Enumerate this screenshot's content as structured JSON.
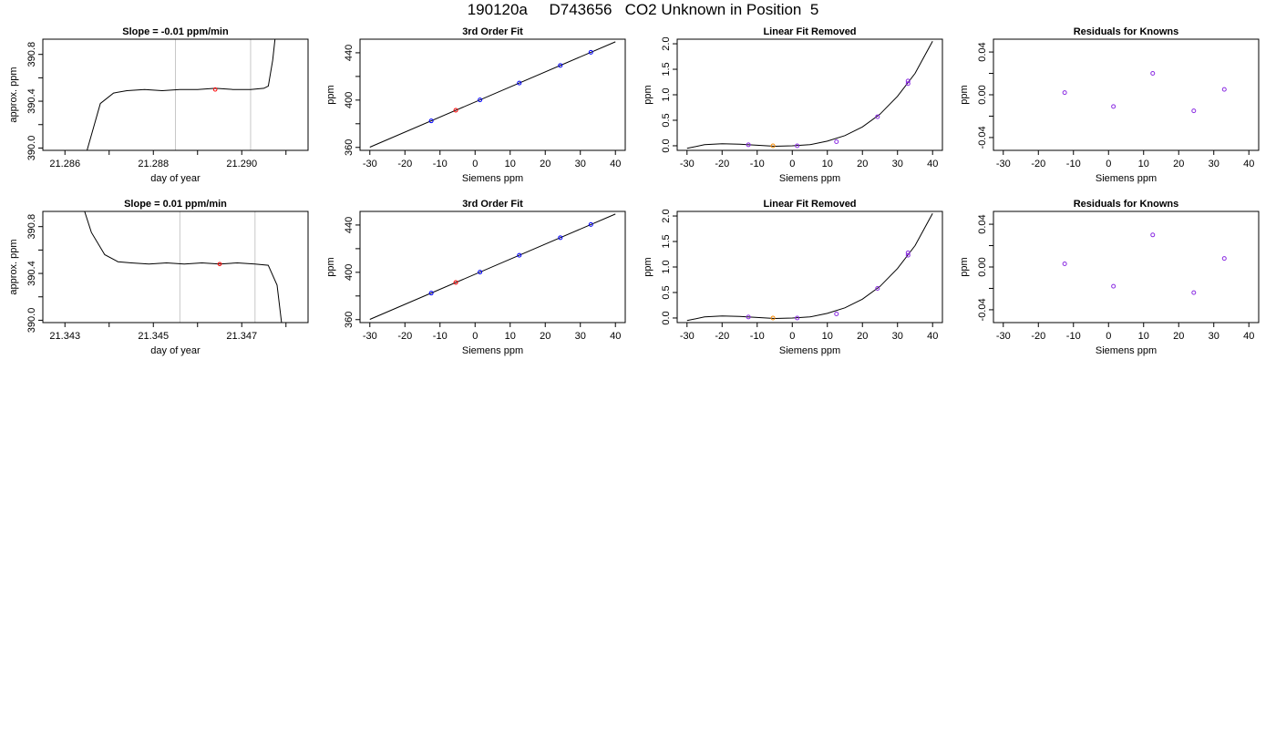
{
  "page_title": "190120a     D743656   CO2 Unknown in Position  5",
  "colors": {
    "curve": "#000000",
    "frame": "#000000",
    "marker_lines": "#c8c8c8",
    "red": "#ff0000",
    "blue": "#0000ff",
    "orange": "#ff8c00",
    "purple": "#8a2be2"
  },
  "chart_data": [
    {
      "type": "line",
      "title": "Slope =  -0.01  ppm/min",
      "xlabel": "day of year",
      "ylabel": "approx. ppm",
      "xlim": [
        21.2855,
        21.2915
      ],
      "ylim": [
        389.98,
        390.93
      ],
      "xticks": [
        21.286,
        21.287,
        21.288,
        21.289,
        21.29,
        21.291
      ],
      "xtick_labels": [
        "21.286",
        "",
        "21.288",
        "",
        "21.290",
        ""
      ],
      "yticks": [
        390.0,
        390.2,
        390.4,
        390.6,
        390.8
      ],
      "ytick_labels": [
        "390.0",
        "",
        "390.4",
        "",
        "390.8"
      ],
      "vlines": [
        21.2885,
        21.2902
      ],
      "x": [
        21.2865,
        21.2868,
        21.2871,
        21.2874,
        21.2878,
        21.2882,
        21.2886,
        21.289,
        21.2894,
        21.2898,
        21.2902,
        21.2905,
        21.2906,
        21.2907,
        21.2908
      ],
      "y": [
        389.98,
        390.38,
        390.47,
        390.49,
        390.5,
        390.49,
        390.5,
        390.5,
        390.51,
        390.5,
        390.5,
        390.51,
        390.53,
        390.75,
        391.1
      ],
      "highlight": {
        "x": 21.2894,
        "y": 390.5,
        "color": "red"
      }
    },
    {
      "type": "scatter",
      "title": "3rd Order Fit",
      "xlabel": "Siemens ppm",
      "ylabel": "ppm",
      "xlim": [
        -32.8,
        42.8
      ],
      "ylim": [
        357.5,
        451.5
      ],
      "xticks": [
        -30,
        -20,
        -10,
        0,
        10,
        20,
        30,
        40
      ],
      "xtick_labels": [
        "-30",
        "-20",
        "-10",
        "0",
        "10",
        "20",
        "30",
        "40"
      ],
      "yticks": [
        360,
        380,
        400,
        420,
        440
      ],
      "ytick_labels": [
        "360",
        "",
        "400",
        "",
        "440"
      ],
      "fit_line": {
        "x": [
          -30,
          40
        ],
        "y": [
          360.2,
          449.3
        ]
      },
      "points": [
        {
          "x": -12.5,
          "y": 382.4,
          "color": "blue"
        },
        {
          "x": -5.5,
          "y": 391.4,
          "color": "red"
        },
        {
          "x": 1.4,
          "y": 400.2,
          "color": "blue"
        },
        {
          "x": 12.6,
          "y": 414.4,
          "color": "blue"
        },
        {
          "x": 24.3,
          "y": 429.3,
          "color": "blue"
        },
        {
          "x": 33.0,
          "y": 440.4,
          "color": "blue"
        }
      ]
    },
    {
      "type": "scatter",
      "title": "Linear Fit Removed",
      "xlabel": "Siemens ppm",
      "ylabel": "ppm",
      "xlim": [
        -32.8,
        42.8
      ],
      "ylim": [
        -0.09,
        2.09
      ],
      "xticks": [
        -30,
        -20,
        -10,
        0,
        10,
        20,
        30,
        40
      ],
      "xtick_labels": [
        "-30",
        "-20",
        "-10",
        "0",
        "10",
        "20",
        "30",
        "40"
      ],
      "yticks": [
        0.0,
        0.5,
        1.0,
        1.5,
        2.0
      ],
      "ytick_labels": [
        "0.0",
        "0.5",
        "1.0",
        "1.5",
        "2.0"
      ],
      "curve": {
        "x": [
          -30,
          -25,
          -20,
          -15,
          -10,
          -5,
          0,
          5,
          10,
          15,
          20,
          25,
          30,
          35,
          40
        ],
        "y": [
          -0.05,
          0.02,
          0.04,
          0.03,
          0.01,
          -0.01,
          0.0,
          0.02,
          0.09,
          0.2,
          0.37,
          0.62,
          0.97,
          1.42,
          2.05
        ]
      },
      "points": [
        {
          "x": -12.5,
          "y": 0.02,
          "color": "purple"
        },
        {
          "x": -5.5,
          "y": 0.0,
          "color": "orange"
        },
        {
          "x": 1.4,
          "y": 0.0,
          "color": "purple"
        },
        {
          "x": 12.6,
          "y": 0.08,
          "color": "purple"
        },
        {
          "x": 24.3,
          "y": 0.57,
          "color": "purple"
        },
        {
          "x": 33.0,
          "y": 1.22,
          "color": "purple"
        },
        {
          "x": 33.0,
          "y": 1.27,
          "color": "purple"
        }
      ]
    },
    {
      "type": "scatter",
      "title": "Residuals for Knowns",
      "xlabel": "Siemens ppm",
      "ylabel": "ppm",
      "xlim": [
        -32.8,
        42.8
      ],
      "ylim": [
        -0.052,
        0.052
      ],
      "xticks": [
        -30,
        -20,
        -10,
        0,
        10,
        20,
        30,
        40
      ],
      "xtick_labels": [
        "-30",
        "-20",
        "-10",
        "0",
        "10",
        "20",
        "30",
        "40"
      ],
      "yticks": [
        -0.04,
        -0.02,
        0.0,
        0.02,
        0.04
      ],
      "ytick_labels": [
        "-0.04",
        "",
        "0.00",
        "",
        "0.04"
      ],
      "points": [
        {
          "x": -12.5,
          "y": 0.002,
          "color": "purple"
        },
        {
          "x": 1.4,
          "y": -0.011,
          "color": "purple"
        },
        {
          "x": 12.6,
          "y": 0.02,
          "color": "purple"
        },
        {
          "x": 24.3,
          "y": -0.015,
          "color": "purple"
        },
        {
          "x": 33.0,
          "y": 0.005,
          "color": "purple"
        }
      ]
    },
    {
      "type": "line",
      "title": "Slope =  0.01  ppm/min",
      "xlabel": "day of year",
      "ylabel": "approx. ppm",
      "xlim": [
        21.3425,
        21.3485
      ],
      "ylim": [
        389.98,
        390.93
      ],
      "xticks": [
        21.343,
        21.344,
        21.345,
        21.346,
        21.347,
        21.348
      ],
      "xtick_labels": [
        "21.343",
        "",
        "21.345",
        "",
        "21.347",
        ""
      ],
      "yticks": [
        390.0,
        390.2,
        390.4,
        390.6,
        390.8
      ],
      "ytick_labels": [
        "390.0",
        "",
        "390.4",
        "",
        "390.8"
      ],
      "vlines": [
        21.3456,
        21.3473
      ],
      "x": [
        21.3433,
        21.3436,
        21.3439,
        21.3442,
        21.3445,
        21.3449,
        21.3453,
        21.3457,
        21.3461,
        21.3465,
        21.3469,
        21.3473,
        21.3476,
        21.3478,
        21.3479
      ],
      "y": [
        391.1,
        390.75,
        390.56,
        390.5,
        390.49,
        390.48,
        390.49,
        390.48,
        390.49,
        390.48,
        390.49,
        390.48,
        390.47,
        390.3,
        389.98
      ],
      "highlight": {
        "x": 21.3465,
        "y": 390.48,
        "color": "red"
      }
    },
    {
      "type": "scatter",
      "title": "3rd Order Fit",
      "xlabel": "Siemens ppm",
      "ylabel": "ppm",
      "xlim": [
        -32.8,
        42.8
      ],
      "ylim": [
        357.5,
        451.5
      ],
      "xticks": [
        -30,
        -20,
        -10,
        0,
        10,
        20,
        30,
        40
      ],
      "xtick_labels": [
        "-30",
        "-20",
        "-10",
        "0",
        "10",
        "20",
        "30",
        "40"
      ],
      "yticks": [
        360,
        380,
        400,
        420,
        440
      ],
      "ytick_labels": [
        "360",
        "",
        "400",
        "",
        "440"
      ],
      "fit_line": {
        "x": [
          -30,
          40
        ],
        "y": [
          360.2,
          449.3
        ]
      },
      "points": [
        {
          "x": -12.5,
          "y": 382.4,
          "color": "blue"
        },
        {
          "x": -5.5,
          "y": 391.4,
          "color": "red"
        },
        {
          "x": 1.4,
          "y": 400.2,
          "color": "blue"
        },
        {
          "x": 12.6,
          "y": 414.4,
          "color": "blue"
        },
        {
          "x": 24.3,
          "y": 429.3,
          "color": "blue"
        },
        {
          "x": 33.0,
          "y": 440.4,
          "color": "blue"
        }
      ]
    },
    {
      "type": "scatter",
      "title": "Linear Fit Removed",
      "xlabel": "Siemens ppm",
      "ylabel": "ppm",
      "xlim": [
        -32.8,
        42.8
      ],
      "ylim": [
        -0.09,
        2.09
      ],
      "xticks": [
        -30,
        -20,
        -10,
        0,
        10,
        20,
        30,
        40
      ],
      "xtick_labels": [
        "-30",
        "-20",
        "-10",
        "0",
        "10",
        "20",
        "30",
        "40"
      ],
      "yticks": [
        0.0,
        0.5,
        1.0,
        1.5,
        2.0
      ],
      "ytick_labels": [
        "0.0",
        "0.5",
        "1.0",
        "1.5",
        "2.0"
      ],
      "curve": {
        "x": [
          -30,
          -25,
          -20,
          -15,
          -10,
          -5,
          0,
          5,
          10,
          15,
          20,
          25,
          30,
          35,
          40
        ],
        "y": [
          -0.05,
          0.02,
          0.04,
          0.03,
          0.01,
          -0.01,
          0.0,
          0.02,
          0.09,
          0.2,
          0.37,
          0.62,
          0.97,
          1.42,
          2.05
        ]
      },
      "points": [
        {
          "x": -12.5,
          "y": 0.02,
          "color": "purple"
        },
        {
          "x": -5.5,
          "y": 0.0,
          "color": "orange"
        },
        {
          "x": 1.4,
          "y": 0.0,
          "color": "purple"
        },
        {
          "x": 12.6,
          "y": 0.08,
          "color": "purple"
        },
        {
          "x": 24.3,
          "y": 0.58,
          "color": "purple"
        },
        {
          "x": 33.0,
          "y": 1.23,
          "color": "purple"
        },
        {
          "x": 33.0,
          "y": 1.28,
          "color": "purple"
        }
      ]
    },
    {
      "type": "scatter",
      "title": "Residuals for Knowns",
      "xlabel": "Siemens ppm",
      "ylabel": "ppm",
      "xlim": [
        -32.8,
        42.8
      ],
      "ylim": [
        -0.052,
        0.052
      ],
      "xticks": [
        -30,
        -20,
        -10,
        0,
        10,
        20,
        30,
        40
      ],
      "xtick_labels": [
        "-30",
        "-20",
        "-10",
        "0",
        "10",
        "20",
        "30",
        "40"
      ],
      "yticks": [
        -0.04,
        -0.02,
        0.0,
        0.02,
        0.04
      ],
      "ytick_labels": [
        "-0.04",
        "",
        "0.00",
        "",
        "0.04"
      ],
      "points": [
        {
          "x": -12.5,
          "y": 0.003,
          "color": "purple"
        },
        {
          "x": 1.4,
          "y": -0.018,
          "color": "purple"
        },
        {
          "x": 12.6,
          "y": 0.03,
          "color": "purple"
        },
        {
          "x": 24.3,
          "y": -0.024,
          "color": "purple"
        },
        {
          "x": 33.0,
          "y": 0.008,
          "color": "purple"
        }
      ]
    }
  ]
}
